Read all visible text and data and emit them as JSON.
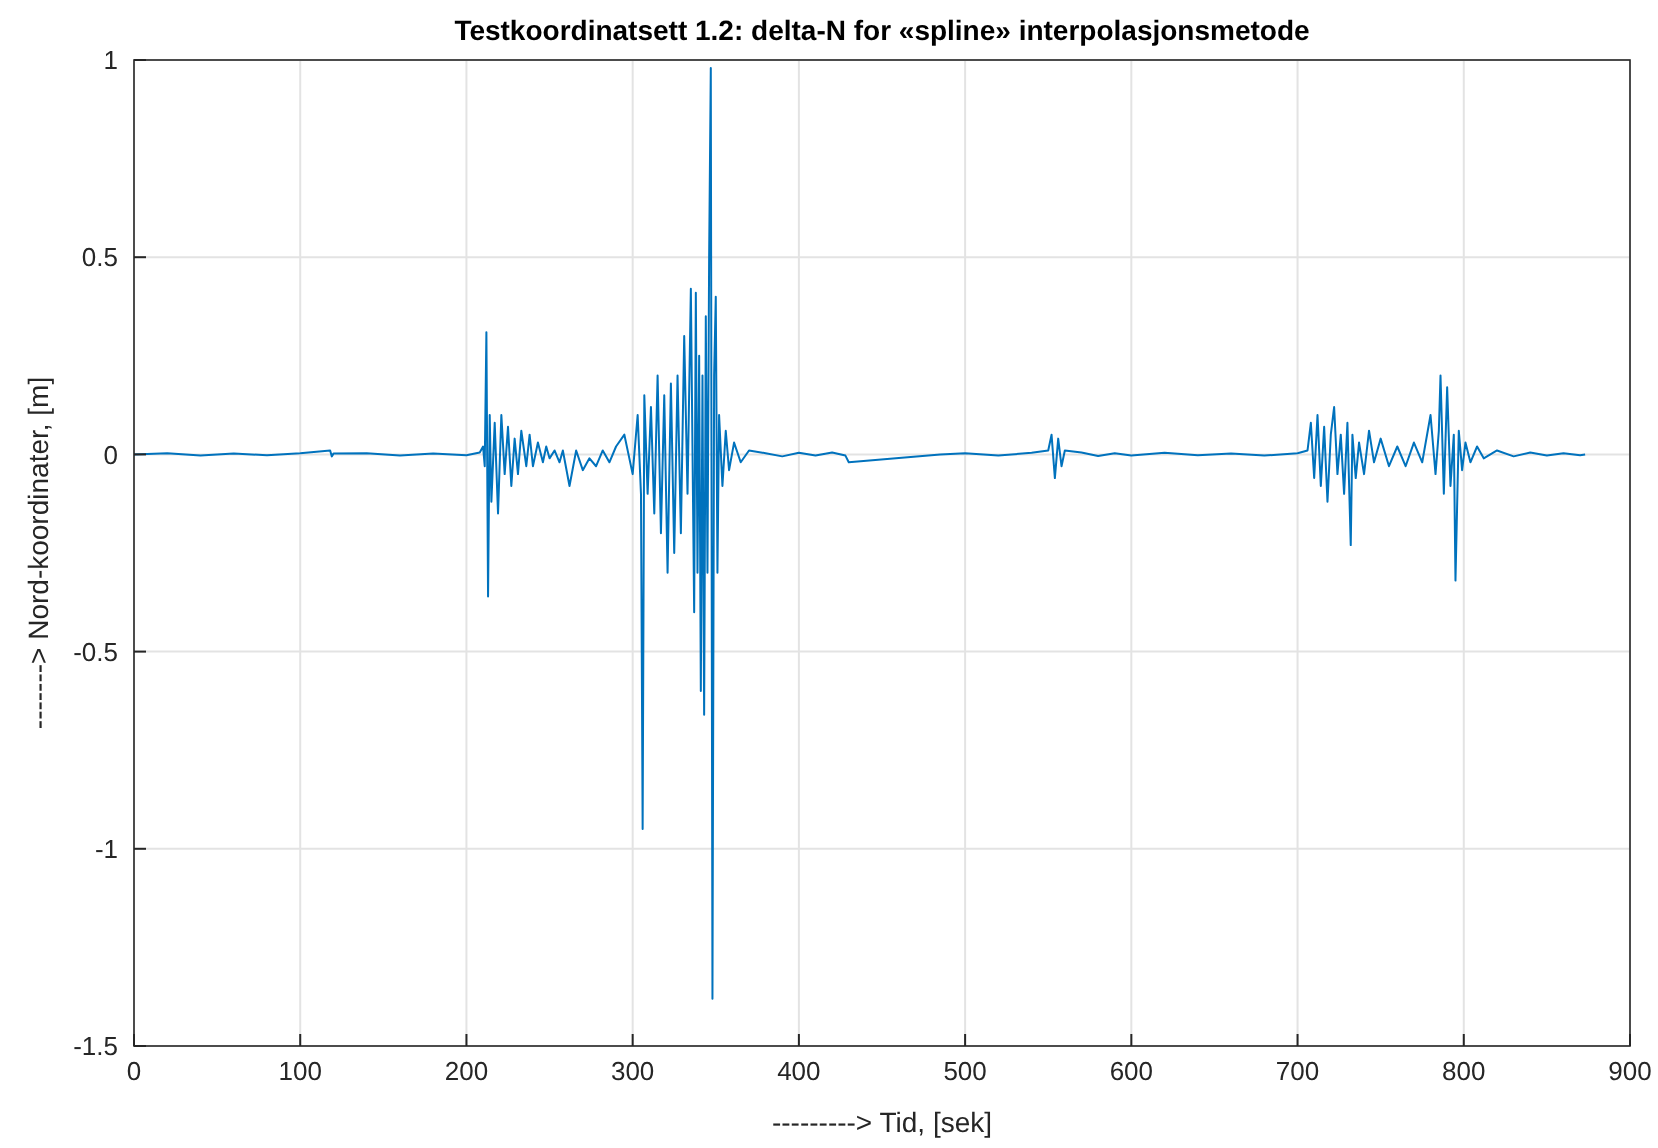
{
  "chart_data": {
    "type": "line",
    "title": "Testkoordinatsett 1.2: delta-N for «spline» interpolasjonsmetode",
    "xlabel": "---------> Tid, [sek]",
    "ylabel": "-------> Nord-koordinater, [m]",
    "xlim": [
      0,
      900
    ],
    "ylim": [
      -1.5,
      1
    ],
    "xticks": [
      0,
      100,
      200,
      300,
      400,
      500,
      600,
      700,
      800,
      900
    ],
    "yticks": [
      -1.5,
      -1,
      -0.5,
      0,
      0.5,
      1
    ],
    "grid": true,
    "line_style": "solid",
    "marker": "none",
    "series": [
      {
        "color": "#0072bd",
        "x": [
          0,
          20,
          40,
          60,
          80,
          100,
          118,
          119,
          120,
          140,
          160,
          180,
          200,
          208,
          210,
          211,
          212,
          213,
          214,
          215,
          217,
          219,
          221,
          223,
          225,
          227,
          229,
          231,
          233,
          236,
          238,
          240,
          243,
          246,
          248,
          250,
          253,
          256,
          258,
          262,
          266,
          270,
          274,
          278,
          282,
          286,
          290,
          295,
          300,
          303,
          305,
          306,
          307,
          309,
          311,
          313,
          315,
          317,
          319,
          321,
          323,
          325,
          327,
          329,
          331,
          333,
          335,
          337,
          338,
          339,
          340,
          341,
          342,
          343,
          344,
          345,
          346,
          347,
          348,
          349,
          350,
          351,
          352,
          354,
          356,
          358,
          361,
          365,
          370,
          380,
          390,
          400,
          410,
          420,
          428,
          430,
          485,
          500,
          520,
          540,
          550,
          552,
          554,
          556,
          558,
          560,
          570,
          580,
          590,
          600,
          620,
          640,
          660,
          680,
          700,
          706,
          708,
          710,
          712,
          714,
          716,
          718,
          720,
          722,
          724,
          726,
          728,
          730,
          732,
          733,
          735,
          737,
          740,
          743,
          746,
          750,
          755,
          760,
          765,
          770,
          775,
          780,
          783,
          785,
          786,
          788,
          790,
          792,
          794,
          795,
          797,
          799,
          801,
          804,
          808,
          812,
          820,
          830,
          840,
          850,
          860,
          870,
          873
        ],
        "values": [
          0,
          0.003,
          -0.003,
          0.002,
          -0.002,
          0.003,
          0.01,
          -0.005,
          0.002,
          0.003,
          -0.003,
          0.002,
          -0.002,
          0.005,
          0.02,
          -0.03,
          0.31,
          -0.36,
          0.1,
          -0.12,
          0.08,
          -0.15,
          0.1,
          -0.05,
          0.07,
          -0.08,
          0.04,
          -0.05,
          0.06,
          -0.03,
          0.05,
          -0.03,
          0.03,
          -0.02,
          0.02,
          -0.01,
          0.01,
          -0.02,
          0.01,
          -0.08,
          0.01,
          -0.04,
          -0.01,
          -0.03,
          0.01,
          -0.02,
          0.02,
          0.05,
          -0.05,
          0.1,
          -0.1,
          -0.95,
          0.15,
          -0.1,
          0.12,
          -0.15,
          0.2,
          -0.2,
          0.15,
          -0.3,
          0.18,
          -0.25,
          0.2,
          -0.2,
          0.3,
          -0.1,
          0.42,
          -0.4,
          0.41,
          -0.3,
          0.25,
          -0.6,
          0.2,
          -0.66,
          0.35,
          -0.3,
          0.5,
          0.98,
          -1.38,
          0.2,
          0.4,
          -0.3,
          0.1,
          -0.08,
          0.06,
          -0.04,
          0.03,
          -0.02,
          0.01,
          0.003,
          -0.005,
          0.004,
          -0.003,
          0.005,
          -0.003,
          -0.02,
          0,
          0.003,
          -0.003,
          0.004,
          0.01,
          0.05,
          -0.06,
          0.04,
          -0.03,
          0.01,
          0.005,
          -0.004,
          0.003,
          -0.003,
          0.004,
          -0.002,
          0.002,
          -0.003,
          0.003,
          0.01,
          0.08,
          -0.06,
          0.1,
          -0.08,
          0.07,
          -0.12,
          0.05,
          0.12,
          -0.05,
          0.05,
          -0.1,
          0.08,
          -0.23,
          0.05,
          -0.06,
          0.03,
          -0.05,
          0.06,
          -0.02,
          0.04,
          -0.03,
          0.02,
          -0.03,
          0.03,
          -0.02,
          0.1,
          -0.05,
          0.06,
          0.2,
          -0.1,
          0.17,
          -0.08,
          0.05,
          -0.32,
          0.06,
          -0.04,
          0.03,
          -0.02,
          0.02,
          -0.01,
          0.01,
          -0.005,
          0.005,
          -0.003,
          0.003,
          -0.002,
          0
        ]
      }
    ]
  }
}
